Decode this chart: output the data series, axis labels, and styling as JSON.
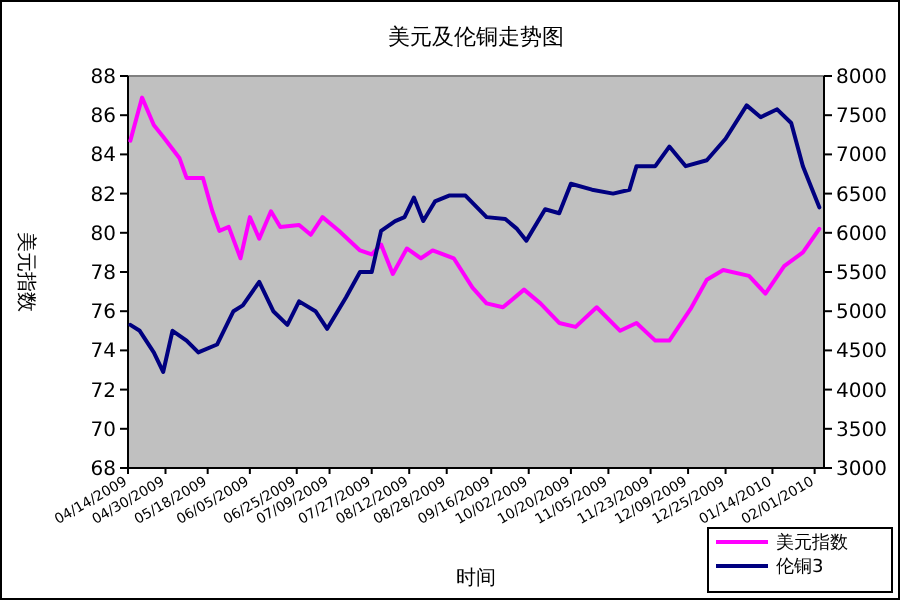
{
  "chart_data": {
    "type": "line",
    "title": "美元及伦铜走势图",
    "xlabel": "时间",
    "ylabel": "美元指数",
    "xlim": [
      "2009-04-14",
      "2010-02-05"
    ],
    "xticks": [
      {
        "value": "2009-04-14",
        "label": "04/14/2009"
      },
      {
        "value": "2009-04-30",
        "label": "04/30/2009"
      },
      {
        "value": "2009-05-18",
        "label": "05/18/2009"
      },
      {
        "value": "2009-06-05",
        "label": "06/05/2009"
      },
      {
        "value": "2009-06-25",
        "label": "06/25/2009"
      },
      {
        "value": "2009-07-09",
        "label": "07/09/2009"
      },
      {
        "value": "2009-07-27",
        "label": "07/27/2009"
      },
      {
        "value": "2009-08-12",
        "label": "08/12/2009"
      },
      {
        "value": "2009-08-28",
        "label": "08/28/2009"
      },
      {
        "value": "2009-09-16",
        "label": "09/16/2009"
      },
      {
        "value": "2009-10-02",
        "label": "10/02/2009"
      },
      {
        "value": "2009-10-20",
        "label": "10/20/2009"
      },
      {
        "value": "2009-11-05",
        "label": "11/05/2009"
      },
      {
        "value": "2009-11-23",
        "label": "11/23/2009"
      },
      {
        "value": "2009-12-09",
        "label": "12/09/2009"
      },
      {
        "value": "2009-12-25",
        "label": "12/25/2009"
      },
      {
        "value": "2010-01-14",
        "label": "01/14/2010"
      },
      {
        "value": "2010-02-01",
        "label": "02/01/2010"
      }
    ],
    "ylim": [
      68,
      88
    ],
    "yticks": [
      68,
      70,
      72,
      74,
      76,
      78,
      80,
      82,
      84,
      86,
      88
    ],
    "y2lim": [
      3000,
      8000
    ],
    "y2ticks": [
      3000,
      3500,
      4000,
      4500,
      5000,
      5500,
      6000,
      6500,
      7000,
      7500,
      8000
    ],
    "legend": "bottom right",
    "grid": false,
    "series": [
      {
        "name": "美元指数",
        "color": "#ff00ff",
        "x": [
          "2009-04-15",
          "2009-04-20",
          "2009-04-25",
          "2009-04-29",
          "2009-05-06",
          "2009-05-09",
          "2009-05-16",
          "2009-05-20",
          "2009-05-23",
          "2009-05-27",
          "2009-06-01",
          "2009-06-05",
          "2009-06-09",
          "2009-06-14",
          "2009-06-18",
          "2009-06-26",
          "2009-07-01",
          "2009-07-06",
          "2009-07-13",
          "2009-07-22",
          "2009-07-27",
          "2009-07-31",
          "2009-08-05",
          "2009-08-11",
          "2009-08-17",
          "2009-08-22",
          "2009-08-31",
          "2009-09-08",
          "2009-09-14",
          "2009-09-21",
          "2009-09-30",
          "2009-10-07",
          "2009-10-15",
          "2009-10-22",
          "2009-10-31",
          "2009-11-10",
          "2009-11-17",
          "2009-11-25",
          "2009-12-01",
          "2009-12-10",
          "2009-12-17",
          "2009-12-24",
          "2010-01-04",
          "2010-01-11",
          "2010-01-19",
          "2010-01-27",
          "2010-02-03"
        ],
        "values": [
          84.7,
          86.9,
          85.5,
          84.9,
          83.8,
          82.8,
          82.8,
          81.1,
          80.1,
          80.3,
          78.7,
          80.8,
          79.7,
          81.1,
          80.3,
          80.4,
          79.9,
          80.8,
          80.1,
          79.1,
          78.9,
          79.4,
          77.9,
          79.2,
          78.7,
          79.1,
          78.7,
          77.2,
          76.4,
          76.2,
          77.1,
          76.4,
          75.4,
          75.2,
          76.2,
          75.0,
          75.4,
          74.5,
          74.5,
          76.1,
          77.6,
          78.1,
          77.8,
          76.9,
          78.3,
          79.0,
          80.2
        ]
      },
      {
        "name": "伦铜3",
        "color": "#000080",
        "axis": "y2",
        "x": [
          "2009-04-15",
          "2009-04-19",
          "2009-04-25",
          "2009-04-29",
          "2009-05-03",
          "2009-05-09",
          "2009-05-14",
          "2009-05-22",
          "2009-05-29",
          "2009-06-02",
          "2009-06-09",
          "2009-06-15",
          "2009-06-21",
          "2009-06-26",
          "2009-07-03",
          "2009-07-08",
          "2009-07-16",
          "2009-07-22",
          "2009-07-27",
          "2009-07-31",
          "2009-08-06",
          "2009-08-10",
          "2009-08-14",
          "2009-08-18",
          "2009-08-23",
          "2009-08-29",
          "2009-09-05",
          "2009-09-14",
          "2009-09-22",
          "2009-09-27",
          "2009-10-01",
          "2009-10-09",
          "2009-10-15",
          "2009-10-20",
          "2009-10-29",
          "2009-11-07",
          "2009-11-14",
          "2009-11-17",
          "2009-11-25",
          "2009-12-01",
          "2009-12-08",
          "2009-12-17",
          "2009-12-25",
          "2010-01-03",
          "2010-01-09",
          "2010-01-16",
          "2010-01-22",
          "2010-01-27",
          "2010-01-31",
          "2010-02-03"
        ],
        "values": [
          4825,
          4750,
          4475,
          4225,
          4750,
          4625,
          4475,
          4575,
          5000,
          5075,
          5375,
          5000,
          4825,
          5125,
          5000,
          4775,
          5175,
          5500,
          5500,
          6025,
          6150,
          6200,
          6450,
          6150,
          6400,
          6475,
          6475,
          6200,
          6175,
          6050,
          5900,
          6300,
          6250,
          6625,
          6550,
          6500,
          6550,
          6850,
          6850,
          7100,
          6850,
          6925,
          7200,
          7625,
          7475,
          7575,
          7400,
          6850,
          6550,
          6325
        ]
      }
    ]
  }
}
